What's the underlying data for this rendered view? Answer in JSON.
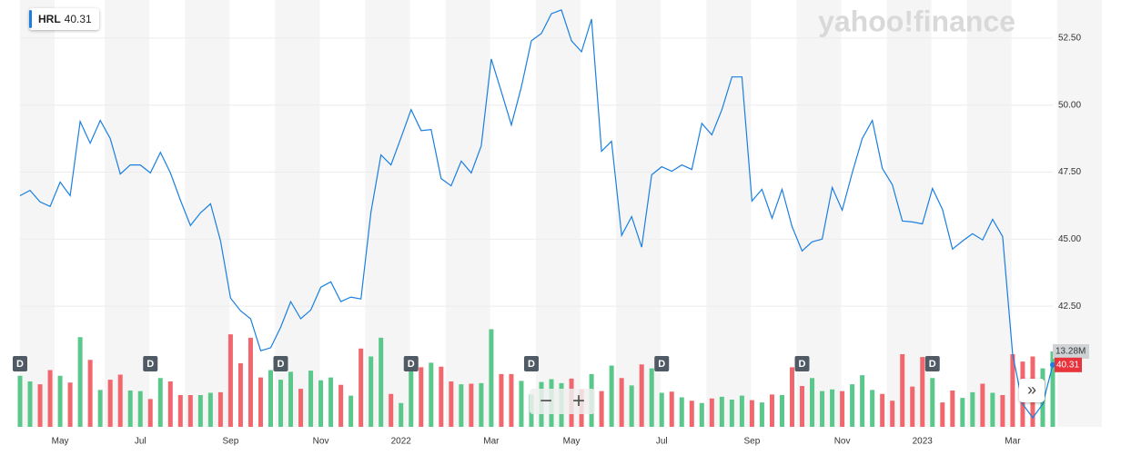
{
  "chart_data": {
    "type": "line",
    "watermark": "yahoo!finance",
    "categories": [
      null,
      null,
      null,
      null,
      "May",
      null,
      null,
      null,
      null,
      null,
      null,
      null,
      "Jul",
      null,
      null,
      null,
      null,
      null,
      null,
      null,
      null,
      "Sep",
      null,
      null,
      null,
      null,
      null,
      null,
      null,
      null,
      "Nov",
      null,
      null,
      null,
      null,
      null,
      null,
      null,
      "2022",
      null,
      null,
      null,
      null,
      null,
      null,
      null,
      null,
      "Mar",
      null,
      null,
      null,
      null,
      null,
      null,
      null,
      "May",
      null,
      null,
      null,
      null,
      null,
      null,
      null,
      null,
      "Jul",
      null,
      null,
      null,
      null,
      null,
      null,
      null,
      null,
      "Sep",
      null,
      null,
      null,
      null,
      null,
      null,
      null,
      null,
      "Nov",
      null,
      null,
      null,
      null,
      null,
      null,
      null,
      "2023",
      null,
      null,
      null,
      null,
      null,
      null,
      null,
      null,
      "Mar",
      null,
      null,
      null,
      null
    ],
    "series": [
      {
        "name": "HRL",
        "color": "#1a7fe0",
        "values": [
          46.62,
          46.82,
          46.39,
          46.22,
          47.13,
          46.62,
          49.39,
          48.58,
          49.43,
          48.75,
          47.43,
          47.77,
          47.77,
          47.47,
          48.24,
          47.47,
          46.45,
          45.51,
          45.98,
          46.32,
          44.93,
          42.8,
          42.33,
          42.03,
          40.84,
          40.95,
          41.72,
          42.67,
          42.03,
          42.36,
          43.21,
          43.41,
          42.67,
          42.84,
          42.77,
          46.01,
          48.14,
          47.77,
          48.78,
          49.83,
          49.05,
          49.09,
          47.26,
          46.99,
          47.91,
          47.47,
          48.48,
          51.72,
          50.51,
          49.26,
          50.68,
          52.4,
          52.67,
          53.41,
          53.55,
          52.4,
          51.99,
          53.21,
          48.28,
          48.65,
          45.14,
          45.84,
          44.7,
          47.4,
          47.7,
          47.53,
          47.77,
          47.6,
          49.32,
          48.89,
          49.83,
          51.05,
          51.05,
          46.42,
          46.86,
          45.78,
          46.86,
          45.47,
          44.56,
          44.9,
          45.0,
          46.93,
          46.08,
          47.47,
          48.75,
          49.43,
          47.64,
          47.03,
          45.68,
          45.64,
          45.57,
          46.89,
          46.11,
          44.63,
          44.93,
          45.2,
          44.97,
          45.74,
          45.1,
          40.71,
          38.85,
          38.34,
          38.85,
          40.31
        ]
      }
    ],
    "last_price": 40.31,
    "volume": {
      "up_color": "#5ac88b",
      "down_color": "#f1676d",
      "ylim": [
        0,
        75.2
      ],
      "values": [
        9,
        8,
        7.5,
        10,
        9,
        7.8,
        15.8,
        11.8,
        6.5,
        8.3,
        9.2,
        6.4,
        6.3,
        4.9,
        8.6,
        8,
        5.6,
        5.6,
        5.6,
        6,
        6.1,
        16.3,
        11.2,
        15.7,
        8.7,
        10,
        8.3,
        9.7,
        6.7,
        9.9,
        8.2,
        8.7,
        7.4,
        5.5,
        13.8,
        12.4,
        15.7,
        5.8,
        4.2,
        10.3,
        10.5,
        11.3,
        10.6,
        8,
        7.5,
        7.6,
        7.7,
        17.2,
        9.3,
        9.3,
        8.1,
        5.7,
        7.9,
        8.4,
        7.7,
        8.5,
        6.6,
        9.3,
        6.3,
        10.8,
        8.6,
        7.3,
        11,
        10.3,
        6,
        6.2,
        5.2,
        4.6,
        4.2,
        5,
        5.3,
        4.8,
        5.5,
        4.7,
        4.3,
        5.7,
        5.6,
        10.5,
        7.2,
        8.6,
        6.3,
        6.6,
        6.3,
        7.5,
        9.1,
        6.5,
        5.8,
        4.6,
        12.8,
        7.1,
        12.3,
        8.6,
        4.3,
        6.4,
        5.1,
        6.1,
        7.6,
        6,
        5.6,
        12.8,
        11.5,
        12.4,
        10.3,
        13.28
      ],
      "last": {
        "value": 13.28,
        "label": "13.28M"
      }
    },
    "dividends": {
      "label": "D",
      "indices": [
        0,
        13,
        26,
        39,
        51,
        64,
        78,
        91
      ]
    },
    "ylim": [
      38.0,
      53.92
    ],
    "yticks": [
      {
        "value": 42.5,
        "label": "42.50"
      },
      {
        "value": 45,
        "label": "45.00"
      },
      {
        "value": 47.5,
        "label": "47.50"
      },
      {
        "value": 50,
        "label": "50.00"
      },
      {
        "value": 52.5,
        "label": "52.50"
      }
    ],
    "grid": true
  }
}
